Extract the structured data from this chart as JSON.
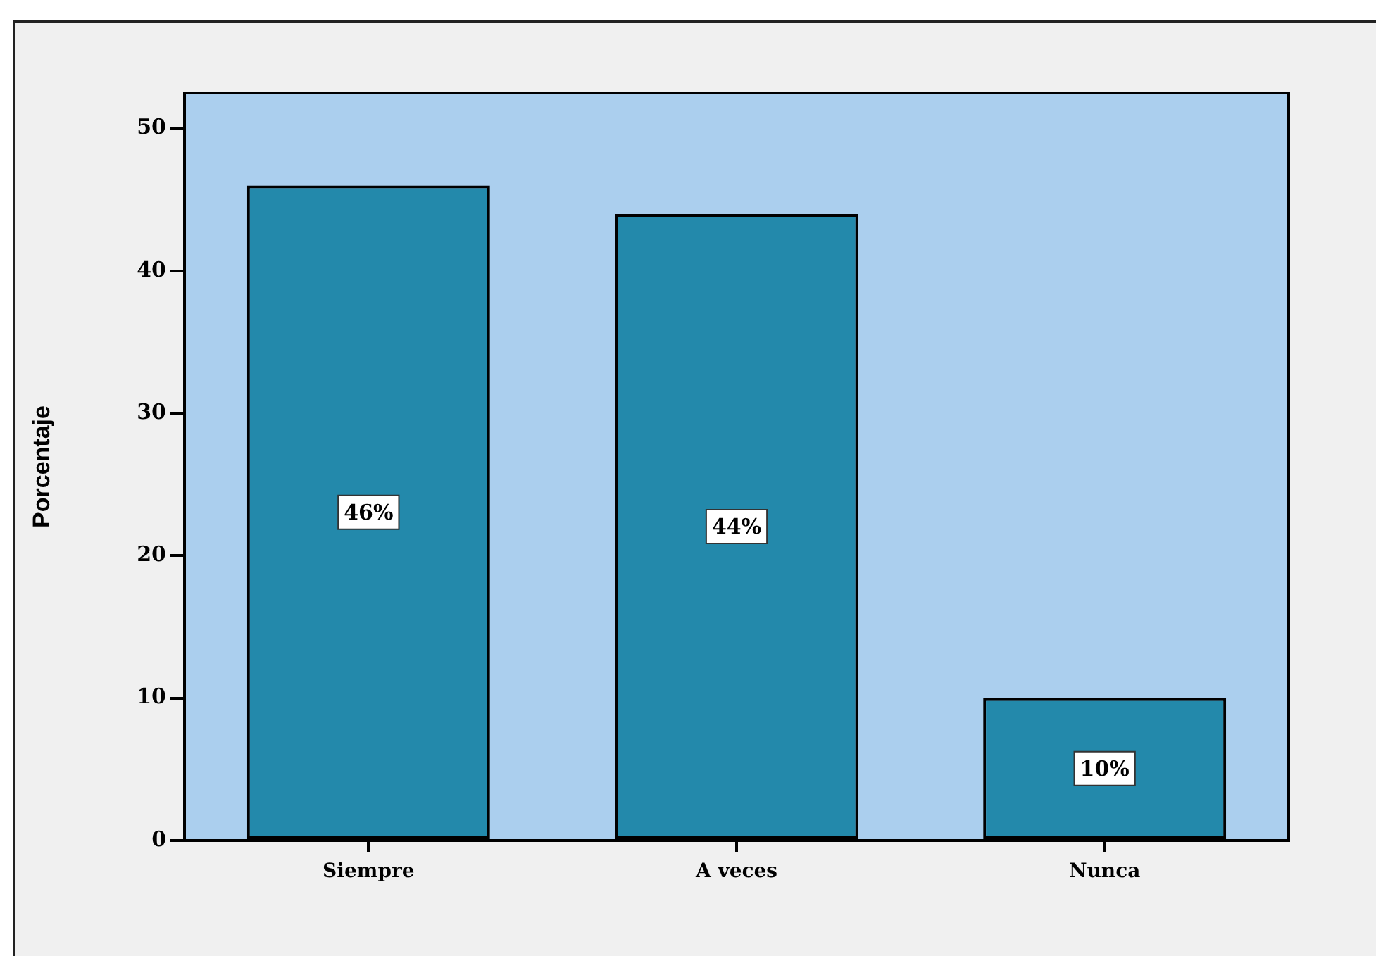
{
  "chart_data": {
    "type": "bar",
    "ylabel": "Porcentaje",
    "categories": [
      "Siempre",
      "A veces",
      "Nunca"
    ],
    "values": [
      46,
      44,
      10
    ],
    "value_labels": [
      "46%",
      "44%",
      "10%"
    ],
    "color": "#2389ab",
    "ylim": [
      0,
      52.5
    ],
    "yticks": [
      0,
      10,
      20,
      30,
      40,
      50
    ]
  }
}
